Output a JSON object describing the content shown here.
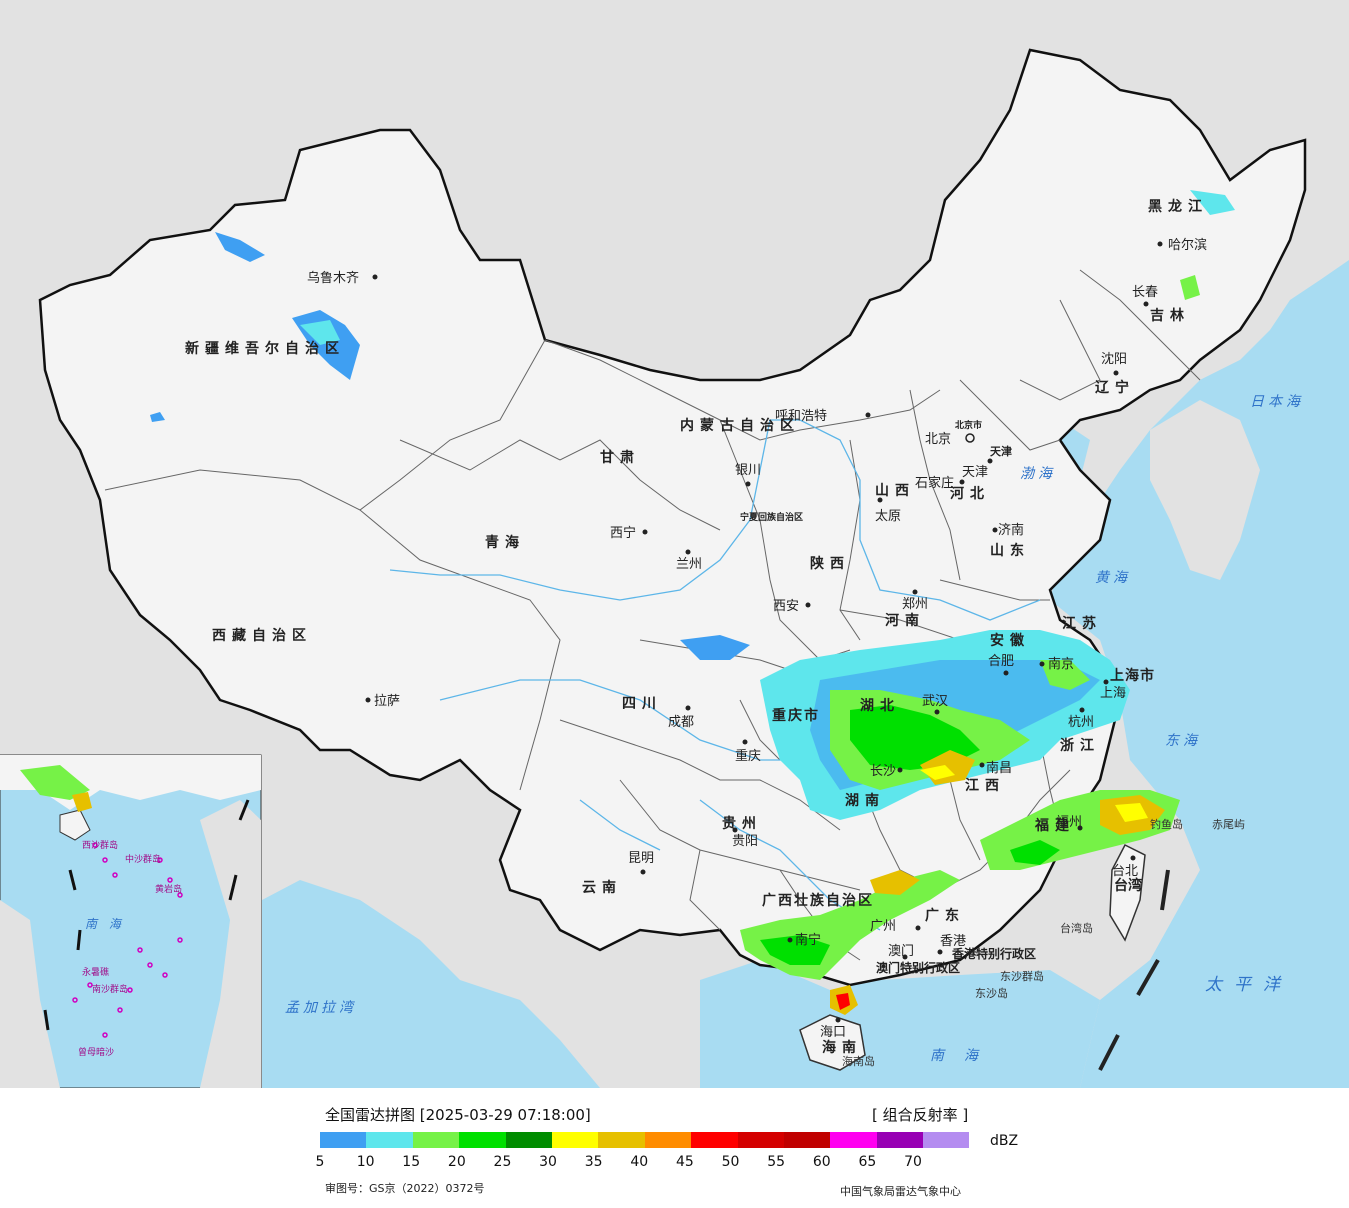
{
  "map": {
    "regions": [
      "新疆维吾尔自治区",
      "西藏自治区",
      "青海",
      "甘肃",
      "内蒙古自治区",
      "黑龙江",
      "吉林",
      "辽宁",
      "河北",
      "山西",
      "陕西",
      "河南",
      "山东",
      "江苏",
      "安徽",
      "湖北",
      "湖南",
      "江西",
      "浙江",
      "福建",
      "广东",
      "广西壮族自治区",
      "贵州",
      "云南",
      "四川",
      "重庆市",
      "宁夏回族自治区",
      "海南",
      "台湾",
      "上海市",
      "北京市",
      "天津",
      "香港特别行政区",
      "澳门特别行政区"
    ],
    "cities": [
      "乌鲁木齐",
      "拉萨",
      "西宁",
      "兰州",
      "银川",
      "呼和浩特",
      "北京",
      "天津",
      "石家庄",
      "太原",
      "济南",
      "郑州",
      "西安",
      "成都",
      "重庆",
      "贵阳",
      "昆明",
      "南宁",
      "广州",
      "澳门",
      "香港",
      "海口",
      "长沙",
      "南昌",
      "武汉",
      "合肥",
      "南京",
      "上海",
      "杭州",
      "福州",
      "台北",
      "沈阳",
      "长春",
      "哈尔滨"
    ],
    "sea_labels": [
      "日本海",
      "渤海",
      "黄海",
      "东海",
      "南海",
      "太平洋",
      "孟加拉湾",
      "南  海"
    ],
    "islands": [
      "钓鱼岛",
      "赤尾屿",
      "台湾岛",
      "海南岛",
      "东沙群岛",
      "东沙岛",
      "西沙群岛",
      "中沙群岛",
      "黄岩岛",
      "永暑礁",
      "南沙群岛",
      "曾母暗沙"
    ],
    "colors": {
      "land": "#f4f4f4",
      "sea": "#a8dcf2",
      "outside": "#e0e0e0",
      "river": "#5db6e8"
    }
  },
  "legend": {
    "title": "全国雷达拼图 [2025-03-29 07:18:00]",
    "product": "[ 组合反射率 ]",
    "unit": "dBZ",
    "ticks": [
      "5",
      "10",
      "15",
      "20",
      "25",
      "30",
      "35",
      "40",
      "45",
      "50",
      "55",
      "60",
      "65",
      "70"
    ],
    "colors": [
      "#3f9ff2",
      "#5ee6ec",
      "#76f247",
      "#00e000",
      "#008c00",
      "#ffff00",
      "#e6c000",
      "#ff8c00",
      "#ff0000",
      "#d40000",
      "#c00000",
      "#ff00f0",
      "#9800b4",
      "#b48cf0"
    ],
    "approval": "审图号：GS京（2022）0372号",
    "organization": "中国气象局雷达气象中心"
  }
}
